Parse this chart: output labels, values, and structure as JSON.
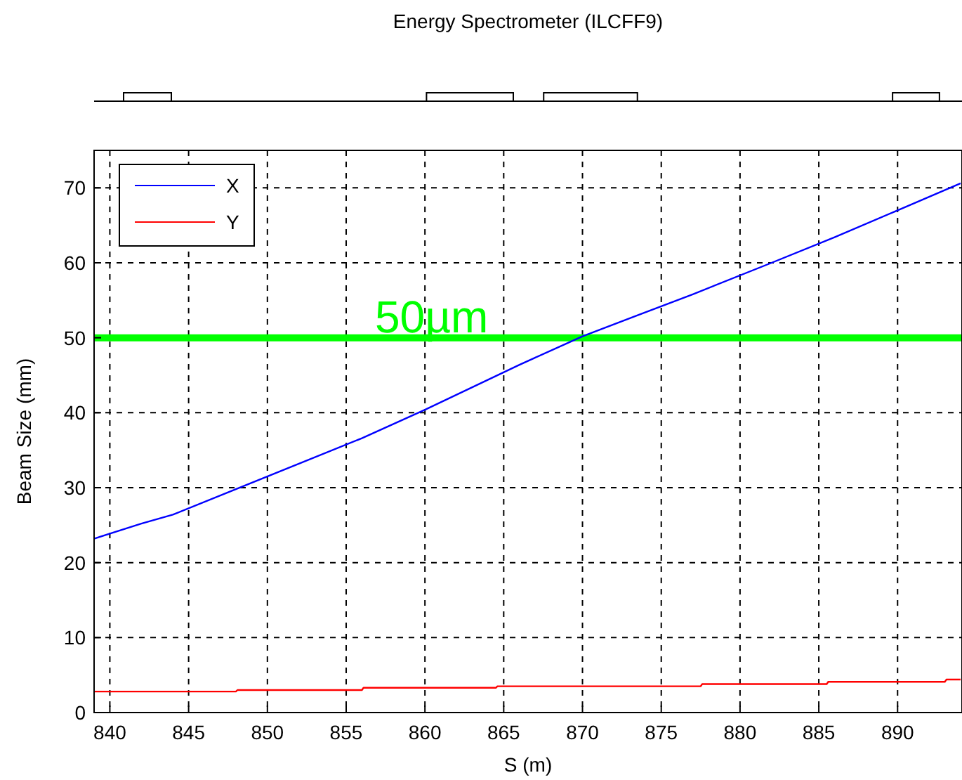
{
  "chart_data": {
    "type": "line",
    "title": "Energy Spectrometer (ILCFF9)",
    "xlabel": "S (m)",
    "ylabel": "Beam Size (mm)",
    "xlim": [
      839,
      894
    ],
    "xticks": [
      840,
      845,
      850,
      855,
      860,
      865,
      870,
      875,
      880,
      885,
      890
    ],
    "ylim": [
      0,
      75
    ],
    "yticks": [
      0,
      10,
      20,
      30,
      40,
      50,
      60,
      70
    ],
    "grid": true,
    "legend": "top left",
    "line_style": "solid",
    "series": [
      {
        "name": "X",
        "color": "#0000ff",
        "x": [
          839,
          842,
          844,
          848,
          852,
          856,
          860,
          863,
          866,
          870,
          873.5,
          877,
          882,
          886,
          890,
          894
        ],
        "values": [
          23.2,
          25.2,
          26.4,
          29.8,
          33.2,
          36.6,
          40.4,
          43.4,
          46.4,
          50.2,
          53.0,
          55.8,
          60.0,
          63.4,
          67.0,
          70.6
        ]
      },
      {
        "name": "Y",
        "color": "#ff0000",
        "x": [
          839,
          848,
          848.1,
          856,
          856.1,
          864.5,
          864.6,
          877.5,
          877.6,
          885.5,
          885.6,
          893,
          893.1,
          894
        ],
        "values": [
          2.8,
          2.8,
          3.0,
          3.0,
          3.3,
          3.3,
          3.5,
          3.5,
          3.8,
          3.8,
          4.1,
          4.1,
          4.4,
          4.4
        ]
      }
    ],
    "ref_lines": [
      {
        "axis": "y",
        "value": 50,
        "label": "50µm",
        "color": "#00ff00"
      }
    ]
  }
}
